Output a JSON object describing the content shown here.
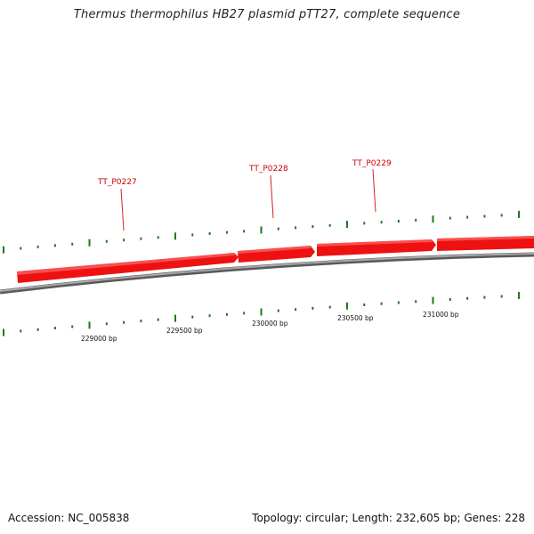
{
  "title": "Thermus thermophilus HB27 plasmid pTT27, complete sequence",
  "footer": {
    "accession": "Accession: NC_005838",
    "summary": "Topology: circular; Length: 232,605 bp; Genes: 228"
  },
  "colors": {
    "gene_fill": "#ee1111",
    "gene_label": "#cc0000",
    "backbone": "#888888",
    "tick": "#1a7a1a"
  },
  "genes": [
    {
      "label": "TT_P0227"
    },
    {
      "label": "TT_P0228"
    },
    {
      "label": "TT_P0229"
    },
    {
      "label": ""
    }
  ],
  "scale_labels": [
    "229000 bp",
    "229500 bp",
    "230000 bp",
    "230500 bp",
    "231000 bp"
  ]
}
